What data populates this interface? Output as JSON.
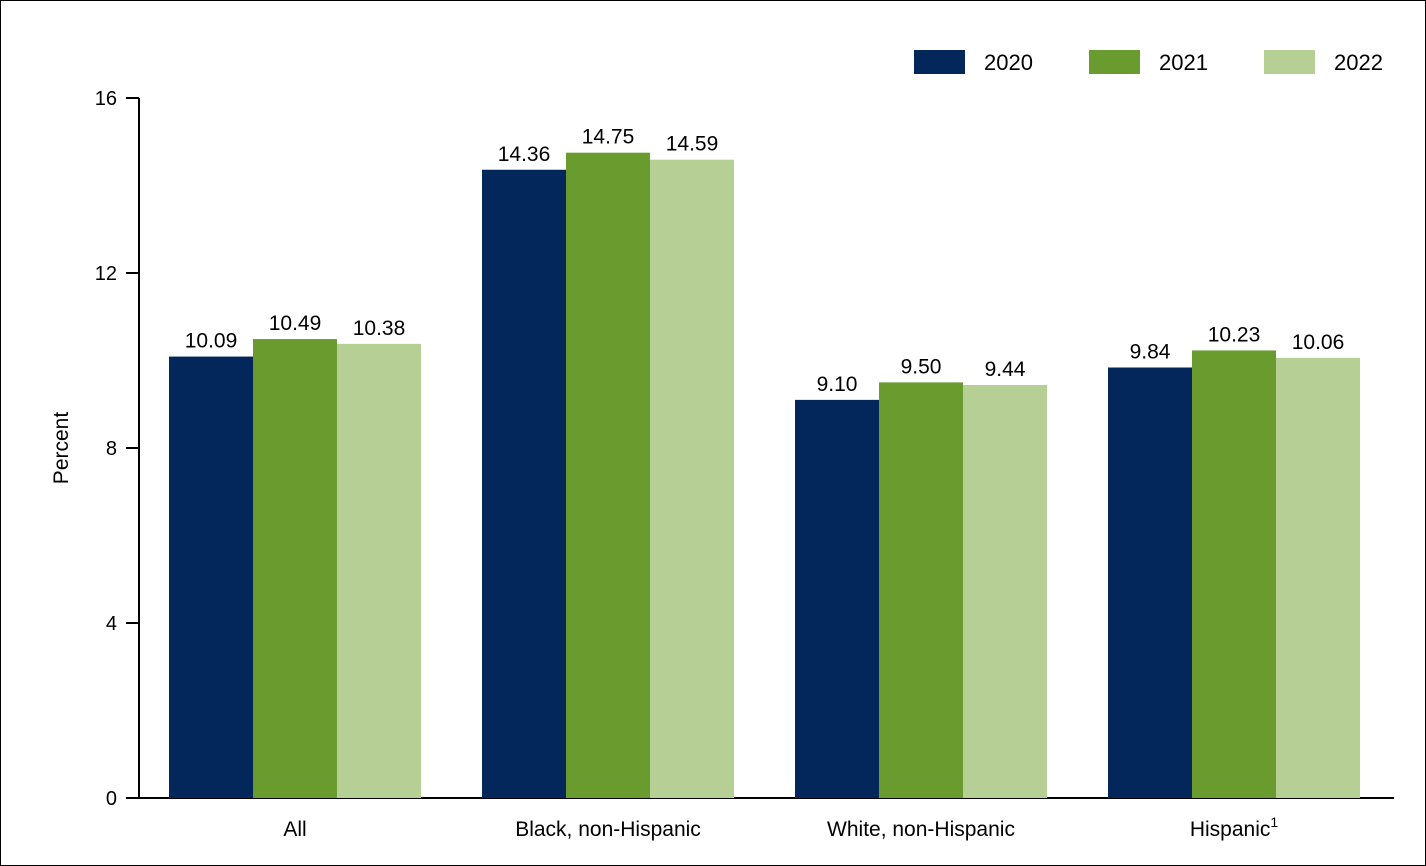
{
  "chart_data": {
    "type": "bar",
    "title": "",
    "xlabel": "",
    "ylabel": "Percent",
    "ylim": [
      0,
      16
    ],
    "yticks": [
      0,
      4,
      8,
      12,
      16
    ],
    "grid": false,
    "legend_position": "top-right",
    "categories": [
      "All",
      "Black, non-Hispanic",
      "White, non-Hispanic",
      "Hispanic"
    ],
    "category_superscripts": [
      "",
      "",
      "",
      "1"
    ],
    "series": [
      {
        "name": "2020",
        "color": "#03275a",
        "values": [
          10.09,
          14.36,
          9.1,
          9.84
        ],
        "labels": [
          "10.09",
          "14.36",
          "9.10",
          "9.84"
        ]
      },
      {
        "name": "2021",
        "color": "#6a9b2e",
        "values": [
          10.49,
          14.75,
          9.5,
          10.23
        ],
        "labels": [
          "10.49",
          "14.75",
          "9.50",
          "10.23"
        ]
      },
      {
        "name": "2022",
        "color": "#b5cf94",
        "values": [
          10.38,
          14.59,
          9.44,
          10.06
        ],
        "labels": [
          "10.38",
          "14.59",
          "9.44",
          "10.06"
        ]
      }
    ]
  }
}
